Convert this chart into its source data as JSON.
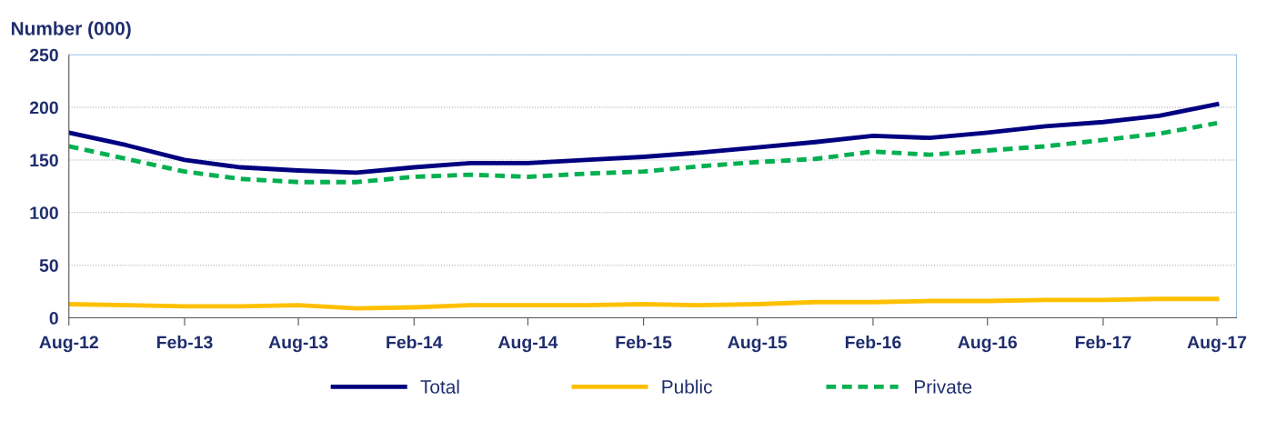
{
  "chart_data": {
    "type": "line",
    "ylabel": "Number (000)",
    "x": [
      "2012-08",
      "2012-11",
      "2013-02",
      "2013-05",
      "2013-08",
      "2013-11",
      "2014-02",
      "2014-05",
      "2014-08",
      "2014-11",
      "2015-02",
      "2015-05",
      "2015-08",
      "2015-11",
      "2016-02",
      "2016-05",
      "2016-08",
      "2016-11",
      "2017-02",
      "2017-05",
      "2017-08"
    ],
    "series": [
      {
        "name": "Total",
        "color": "#000080",
        "line_style": "solid",
        "values": [
          176,
          164,
          150,
          143,
          140,
          138,
          143,
          147,
          147,
          150,
          153,
          157,
          162,
          167,
          173,
          171,
          176,
          182,
          186,
          192,
          203
        ]
      },
      {
        "name": "Public",
        "color": "#ffc000",
        "line_style": "solid",
        "values": [
          13,
          12,
          11,
          11,
          12,
          9,
          10,
          12,
          12,
          12,
          13,
          12,
          13,
          15,
          15,
          16,
          16,
          17,
          17,
          18,
          18
        ]
      },
      {
        "name": "Private",
        "color": "#00b050",
        "line_style": "dashed",
        "values": [
          163,
          151,
          139,
          132,
          129,
          129,
          134,
          136,
          134,
          137,
          139,
          144,
          148,
          151,
          158,
          155,
          159,
          163,
          169,
          175,
          185
        ]
      }
    ],
    "xlim": [
      "2012-08",
      "2017-09"
    ],
    "xticks": [
      {
        "value": "2012-08",
        "label": "Aug-12"
      },
      {
        "value": "2013-02",
        "label": "Feb-13"
      },
      {
        "value": "2013-08",
        "label": "Aug-13"
      },
      {
        "value": "2014-02",
        "label": "Feb-14"
      },
      {
        "value": "2014-08",
        "label": "Aug-14"
      },
      {
        "value": "2015-02",
        "label": "Feb-15"
      },
      {
        "value": "2015-08",
        "label": "Aug-15"
      },
      {
        "value": "2016-02",
        "label": "Feb-16"
      },
      {
        "value": "2016-08",
        "label": "Aug-16"
      },
      {
        "value": "2017-02",
        "label": "Feb-17"
      },
      {
        "value": "2017-08",
        "label": "Aug-17"
      }
    ],
    "ylim": [
      0,
      250
    ],
    "yticks": [
      0,
      50,
      100,
      150,
      200,
      250
    ],
    "grid": "y",
    "legend": "bottom",
    "marker": "none"
  }
}
